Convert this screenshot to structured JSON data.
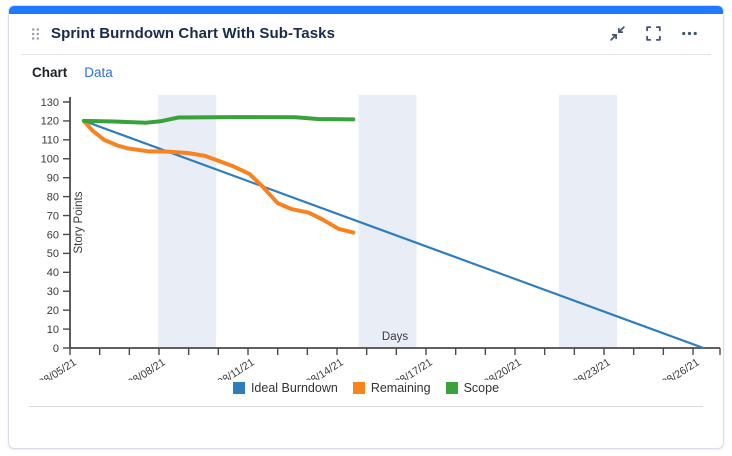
{
  "card": {
    "title": "Sprint Burndown Chart With Sub-Tasks",
    "accent_color": "#1d7afc",
    "icons": {
      "drag_handle": "drag-handle-dots",
      "collapse": "collapse-arrows-icon",
      "fullscreen": "fullscreen-brackets-icon",
      "more": "ellipsis-icon"
    },
    "tabs": [
      {
        "label": "Chart",
        "active": true
      },
      {
        "label": "Data",
        "active": false
      }
    ]
  },
  "colors": {
    "ideal": "#2e7dbe",
    "remaining": "#f8821e",
    "scope": "#3aa23a",
    "weekend_band": "#e9eef6",
    "axis": "#4a4a4a",
    "tick_text": "#3a3a3a"
  },
  "chart_data": {
    "type": "line",
    "xlabel": "Days",
    "ylabel": "Story Points",
    "ylim": [
      0,
      130
    ],
    "y_tick_step": 10,
    "x_unit": "days since 08/05/21",
    "x_total_days": 21.9,
    "x_major_tick_every_days": 3,
    "x_tick_labels": [
      "08/05/21",
      "08/08/21",
      "08/11/21",
      "08/14/21",
      "08/17/21",
      "08/20/21",
      "08/23/21",
      "08/26/21"
    ],
    "grid": false,
    "legend_position": "bottom-center",
    "weekend_bands_days": [
      [
        2.97,
        4.92
      ],
      [
        9.72,
        11.68
      ],
      [
        16.48,
        18.44
      ]
    ],
    "series": [
      {
        "name": "Ideal Burndown",
        "color": "#2e7dbe",
        "stroke_width": 2.2,
        "points": [
          [
            0.47,
            120
          ],
          [
            21.35,
            0
          ]
        ]
      },
      {
        "name": "Remaining",
        "color": "#f8821e",
        "stroke_width": 4,
        "points": [
          [
            0.47,
            120
          ],
          [
            0.75,
            115
          ],
          [
            1.15,
            110
          ],
          [
            1.6,
            107
          ],
          [
            1.95,
            105.5
          ],
          [
            2.6,
            104
          ],
          [
            3.3,
            103.8
          ],
          [
            4.0,
            103
          ],
          [
            4.55,
            101.5
          ],
          [
            5.0,
            99
          ],
          [
            5.5,
            96
          ],
          [
            6.05,
            92
          ],
          [
            6.45,
            86
          ],
          [
            7.0,
            76.5
          ],
          [
            7.45,
            73.5
          ],
          [
            8.05,
            71.5
          ],
          [
            8.5,
            68
          ],
          [
            9.05,
            63
          ],
          [
            9.55,
            61
          ]
        ]
      },
      {
        "name": "Scope",
        "color": "#3aa23a",
        "stroke_width": 4,
        "points": [
          [
            0.47,
            120
          ],
          [
            1.5,
            119.7
          ],
          [
            2.55,
            119
          ],
          [
            3.05,
            119.8
          ],
          [
            3.65,
            121.8
          ],
          [
            5.5,
            122
          ],
          [
            7.6,
            121.9
          ],
          [
            8.35,
            121
          ],
          [
            9.55,
            120.8
          ]
        ]
      }
    ]
  }
}
